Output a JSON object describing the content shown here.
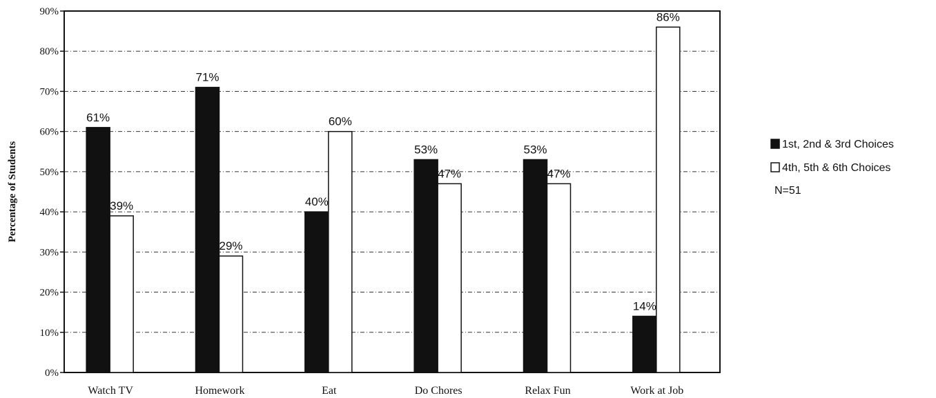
{
  "chart_data": {
    "type": "bar",
    "categories": [
      "Watch TV",
      "Homework",
      "Eat",
      "Do Chores",
      "Relax Fun",
      "Work at Job"
    ],
    "series": [
      {
        "name": "1st, 2nd & 3rd Choices",
        "values": [
          61,
          71,
          40,
          53,
          53,
          14
        ],
        "labels": [
          "61%",
          "71%",
          "40%",
          "53%",
          "53%",
          "14%"
        ]
      },
      {
        "name": "4th, 5th & 6th Choices",
        "values": [
          39,
          29,
          60,
          47,
          47,
          86
        ],
        "labels": [
          "39%",
          "29%",
          "60%",
          "47%",
          "47%",
          "86%"
        ]
      }
    ],
    "ylabel": "Percentage of Students",
    "ylim": [
      0,
      90
    ],
    "yticks": [
      0,
      10,
      20,
      30,
      40,
      50,
      60,
      70,
      80,
      90
    ],
    "ytick_labels": [
      "0%",
      "10%",
      "20%",
      "30%",
      "40%",
      "50%",
      "60%",
      "70%",
      "80%",
      "90%"
    ],
    "grid": true,
    "legend_position": "right",
    "legend_note": "N=51",
    "colors": {
      "series1": "#111111",
      "series2": "#ffffff"
    }
  }
}
